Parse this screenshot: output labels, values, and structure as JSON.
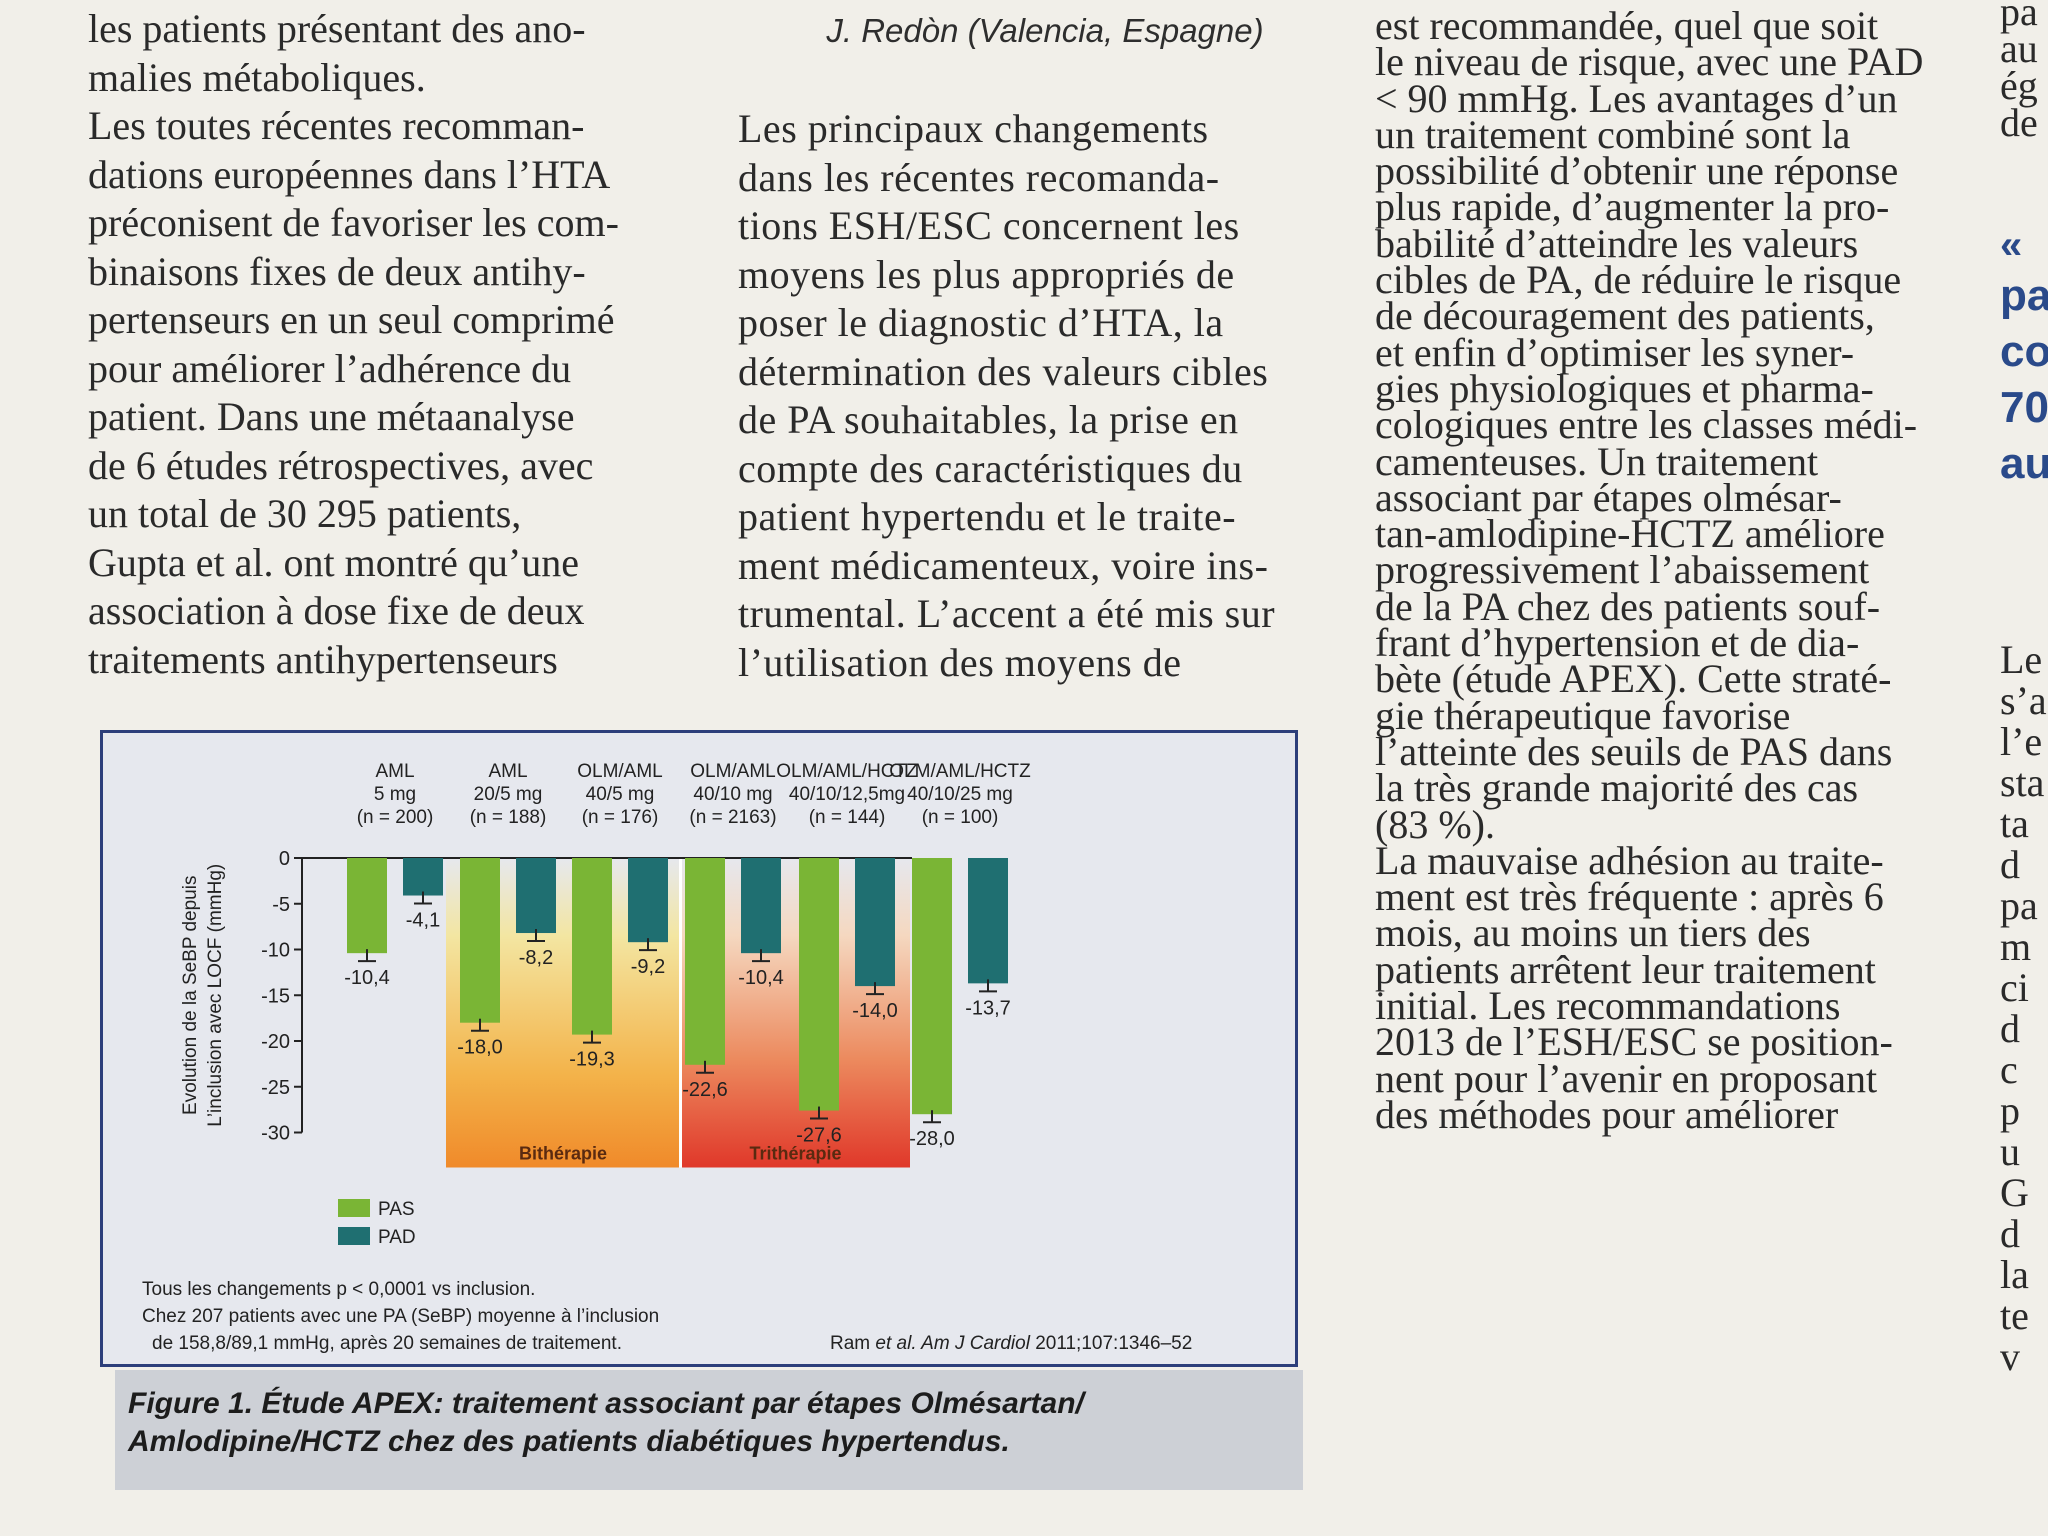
{
  "column1": {
    "lines": [
      "les patients présentant des ano-",
      "malies métaboliques.",
      "Les toutes récentes recomman-",
      "dations européennes dans l’HTA",
      "préconisent de favoriser les com-",
      "binaisons fixes de deux antihy-",
      "pertenseurs en un seul comprimé",
      "pour améliorer l’adhérence du",
      "patient. Dans une métaanalyse",
      "de 6 études rétrospectives, avec",
      "un total de 30 295 patients,",
      "Gupta et al. ont montré qu’une",
      "association à dose fixe de deux",
      "traitements antihypertenseurs"
    ]
  },
  "column2": {
    "header": "J. Redòn (Valencia, Espagne)",
    "lines": [
      "Les principaux changements",
      "dans les récentes recomanda-",
      "tions ESH/ESC concernent les",
      "moyens les plus appropriés de",
      "poser le diagnostic d’HTA, la",
      "détermination des valeurs cibles",
      "de PA souhaitables, la prise en",
      "compte des caractéristiques du",
      "patient hypertendu et le traite-",
      "ment médicamenteux, voire ins-",
      "trumental. L’accent a été mis sur",
      "l’utilisation des moyens de"
    ]
  },
  "column3": {
    "lines": [
      "est recommandée, quel que soit",
      "le niveau de risque, avec une PAD",
      "< 90 mmHg. Les avantages d’un",
      "un traitement combiné sont la",
      "possibilité d’obtenir une réponse",
      "plus rapide, d’augmenter la pro-",
      "babilité d’atteindre les valeurs",
      "cibles de PA, de réduire le risque",
      "de découragement des patients,",
      "et enfin d’optimiser les syner-",
      "gies physiologiques et pharma-",
      "cologiques entre les classes médi-",
      "camenteuses. Un traitement",
      "associant par étapes olmésar-",
      "tan-amlodipine-HCTZ améliore",
      "progressivement l’abaissement",
      "de la PA chez des patients souf-",
      "frant d’hypertension et de dia-",
      "bète (étude APEX). Cette straté-",
      "gie thérapeutique favorise",
      "l’atteinte des seuils de PAS dans",
      "la très grande majorité des cas",
      "(83 %).",
      "La mauvaise adhésion au traite-",
      "ment est très fréquente : après 6",
      "mois, au moins un tiers des",
      "patients arrêtent leur traitement",
      "initial. Les recommandations",
      "2013 de l’ESH/ESC se position-",
      "nent pour l’avenir en proposant",
      "des méthodes pour améliorer"
    ]
  },
  "column4": {
    "lines_top": [
      "pa",
      "au",
      "ég",
      "de"
    ],
    "quote": "«",
    "blue_lines": [
      "pa",
      "co",
      "70",
      "au"
    ],
    "lines_bottom": [
      "Le",
      "s’a",
      "l’e",
      "sta",
      "ta",
      "d",
      "pa",
      "m",
      "ci",
      "d",
      "c",
      "p",
      "u",
      "G",
      "d",
      "la",
      "te",
      "v"
    ]
  },
  "figure": {
    "caption_line1": "Figure 1. Étude APEX: traitement associant par étapes Olmésartan/",
    "caption_line2": "Amlodipine/HCTZ chez des patients diabétiques hypertendus.",
    "footnote_lines": [
      "Tous les changements  p < 0,0001 vs inclusion.",
      "Chez 207 patients avec une PA (SeBP) moyenne à l’inclusion",
      "de 158,8/89,1 mmHg, après 20 semaines de traitement."
    ],
    "reference_prefix": "Ram ",
    "reference_italic": "et al. Am J Cardiol",
    "reference_suffix": " 2011;107:1346–52"
  },
  "chart_data": {
    "type": "bar",
    "ylabel_line1": "Evolution de la SeBP depuis",
    "ylabel_line2": "L’inclusion avec LOCF (mmHg)",
    "ylim": [
      -30,
      0
    ],
    "yticks": [
      "0",
      "-5",
      "-10",
      "-15",
      "-20",
      "-25",
      "-30"
    ],
    "ytick_values": [
      0,
      -5,
      -10,
      -15,
      -20,
      -25,
      -30
    ],
    "groups": [
      {
        "line1": "AML",
        "line2": "5 mg",
        "line3": "(n = 200)"
      },
      {
        "line1": "AML",
        "line2": "20/5 mg",
        "line3": "(n = 188)"
      },
      {
        "line1": "OLM/AML",
        "line2": "40/5 mg",
        "line3": "(n = 176)"
      },
      {
        "line1": "OLM/AML",
        "line2": "40/10 mg",
        "line3": "(n = 2163)"
      },
      {
        "line1": "OLM/AML/HCTZ",
        "line2": "40/10/12,5mg",
        "line3": "(n = 144)"
      },
      {
        "line1": "OLM/AML/HCTZ",
        "line2": "40/10/25 mg",
        "line3": "(n = 100)"
      }
    ],
    "series": [
      {
        "name": "PAS",
        "color": "#7ab535",
        "values": [
          -10.4,
          -18.0,
          -19.3,
          -22.6,
          -27.6,
          -28.0
        ],
        "labels": [
          "-10,4",
          "-18,0",
          "-19,3",
          "-22,6",
          "-27,6",
          "-28,0"
        ]
      },
      {
        "name": "PAD",
        "color": "#1f6f71",
        "values": [
          -4.1,
          -8.2,
          -9.2,
          -10.4,
          -14.0,
          -13.7
        ],
        "labels": [
          "-4,1",
          "-8,2",
          "-9,2",
          "-10,4",
          "-14,0",
          "-13,7"
        ]
      }
    ],
    "regions": [
      {
        "label": "Bithérapie",
        "groups": [
          1,
          3
        ]
      },
      {
        "label": "Trithérapie",
        "groups": [
          4,
          5
        ]
      }
    ],
    "legend": {
      "position": "bottom-left"
    }
  }
}
